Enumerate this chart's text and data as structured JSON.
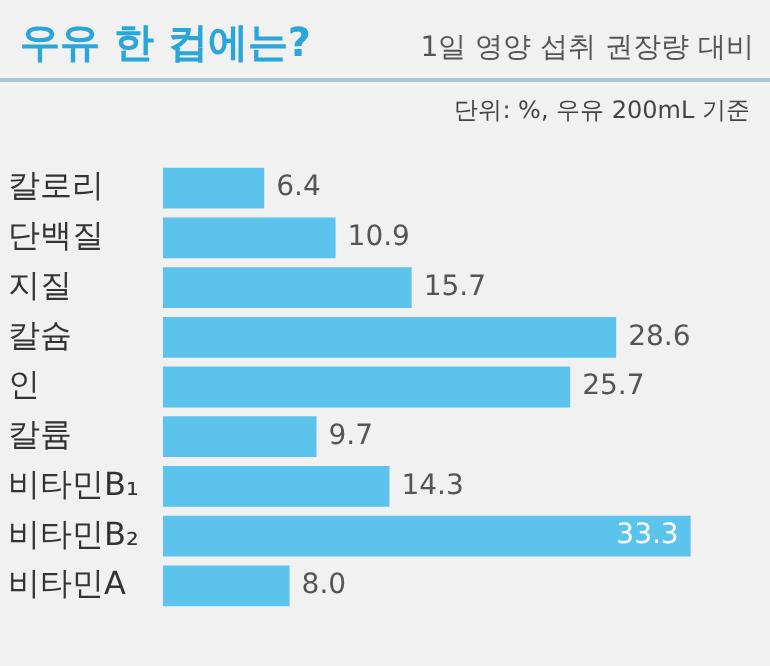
{
  "chart_data": {
    "type": "bar",
    "orientation": "horizontal",
    "title": "우유 한 컵에는?",
    "subtitle": "1일 영양 섭취 권장량 대비",
    "annotations": [
      "단위: %, 우유 200mL 기준"
    ],
    "categories": [
      "칼로리",
      "단백질",
      "지질",
      "칼슘",
      "인",
      "칼륨",
      "비타민B₁",
      "비타민B₂",
      "비타민A"
    ],
    "values": [
      6.4,
      10.9,
      15.7,
      28.6,
      25.7,
      9.7,
      14.3,
      33.3,
      8.0
    ],
    "value_labels": [
      "6.4",
      "10.9",
      "15.7",
      "28.6",
      "25.7",
      "9.7",
      "14.3",
      "33.3",
      "8.0"
    ],
    "color": "#5cc3ec",
    "grid": false,
    "legend": false
  }
}
